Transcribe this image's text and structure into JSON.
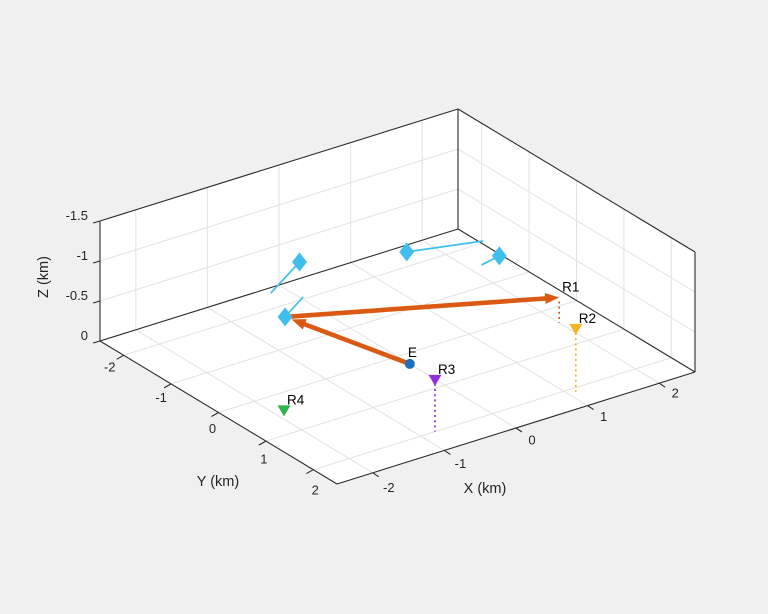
{
  "figure": {
    "background_color": "#F0F0F0",
    "wall_color": "#FFFFFF",
    "grid_color": "#E2E2E2",
    "axis_line_color": "#2B2B2B",
    "tick_label_color": "#262626",
    "annotation_label_color": "#000000"
  },
  "chart_data": {
    "type": "scatter",
    "subtype": "3d-scene",
    "title": "",
    "grid": true,
    "axes": {
      "x": {
        "label": "X (km)",
        "range": [
          -2.5,
          2.5
        ],
        "ticks": [
          -2,
          -1,
          0,
          1,
          2
        ]
      },
      "y": {
        "label": "Y (km)",
        "range": [
          -2.5,
          2.5
        ],
        "ticks": [
          -2,
          -1,
          0,
          1,
          2
        ]
      },
      "z": {
        "label": "Z (km)",
        "range": [
          -1.5,
          0
        ],
        "ticks": [
          0,
          -0.5,
          -1,
          -1.5
        ],
        "direction": "reversed (negative up)"
      }
    },
    "emitter": {
      "label": "E",
      "position_km": [
        0,
        0.26,
        0
      ],
      "marker": "circle",
      "color": "#1E6EBE"
    },
    "receivers": [
      {
        "label": "R1",
        "position_km": [
          2.0,
          0.39,
          -0.33
        ],
        "marker": "arrowhead",
        "color": "#DB5A13",
        "drop_line": true
      },
      {
        "label": "R2",
        "position_km": [
          1.1,
          2.1,
          -0.8
        ],
        "marker": "triangle-down",
        "color": "#F5B423",
        "drop_line": true
      },
      {
        "label": "R3",
        "position_km": [
          -0.8,
          2.0,
          -0.66
        ],
        "marker": "triangle-down",
        "color": "#9231DC",
        "drop_line": true
      },
      {
        "label": "R4",
        "position_km": [
          -1.85,
          0.4,
          0
        ],
        "marker": "triangle-down",
        "color": "#2FB44B",
        "drop_line": false
      }
    ],
    "uav_platforms": [
      {
        "id": "uav-1",
        "position_km": [
          -0.68,
          -1.04,
          -1
        ],
        "trail_end_km": [
          -1.42,
          -0.53,
          -1
        ],
        "marker": "diamond",
        "color": "#41BFEC"
      },
      {
        "id": "uav-2",
        "position_km": [
          0.46,
          -0.5,
          -1
        ],
        "trail_end_km": [
          1.33,
          -0.2,
          -1
        ],
        "marker": "diamond",
        "color": "#41BFEC"
      },
      {
        "id": "uav-3",
        "position_km": [
          1.25,
          0.26,
          -1
        ],
        "trail_end_km": [
          0.95,
          0.34,
          -1
        ],
        "marker": "diamond",
        "color": "#41BFEC"
      },
      {
        "id": "uav-4",
        "position_km": [
          -1.04,
          -0.8,
          -0.5
        ],
        "trail_end_km": [
          -0.57,
          -1.13,
          -0.5
        ],
        "marker": "diamond",
        "color": "#41BFEC"
      }
    ],
    "signal_path": {
      "color": "#DB5A13",
      "style": "thick-arrow",
      "segments": [
        {
          "from": "E",
          "to": "uav-4",
          "from_km": [
            0,
            0.26,
            0
          ],
          "to_km": [
            -1.04,
            -0.8,
            -0.5
          ]
        },
        {
          "from": "uav-4",
          "to": "R1",
          "from_km": [
            -1.04,
            -0.8,
            -0.5
          ],
          "to_km": [
            2.0,
            0.39,
            -0.33
          ]
        }
      ]
    },
    "drop_line_style": "dotted vertical line from marker altitude to ground plane"
  }
}
